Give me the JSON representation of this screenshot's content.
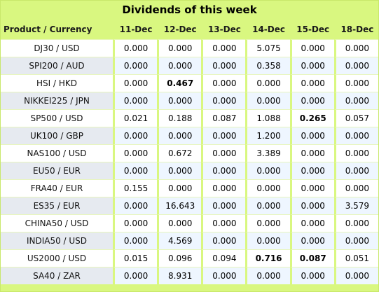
{
  "title": "Dividends of this week",
  "headers": [
    "Product / Currency",
    "11-Dec",
    "12-Dec",
    "13-Dec",
    "14-Dec",
    "15-Dec",
    "18-Dec"
  ],
  "rows": [
    {
      "product": "DJ30 / USD",
      "values": [
        "0.000",
        "0.000",
        "0.000",
        "5.075",
        "0.000",
        "0.000"
      ],
      "bold": []
    },
    {
      "product": "SPI200 / AUD",
      "values": [
        "0.000",
        "0.000",
        "0.000",
        "0.358",
        "0.000",
        "0.000"
      ],
      "bold": []
    },
    {
      "product": "HSI / HKD",
      "values": [
        "0.000",
        "0.467",
        "0.000",
        "0.000",
        "0.000",
        "0.000"
      ],
      "bold": [
        1
      ]
    },
    {
      "product": "NIKKEI225 / JPN",
      "values": [
        "0.000",
        "0.000",
        "0.000",
        "0.000",
        "0.000",
        "0.000"
      ],
      "bold": []
    },
    {
      "product": "SP500 / USD",
      "values": [
        "0.021",
        "0.188",
        "0.087",
        "1.088",
        "0.265",
        "0.057"
      ],
      "bold": [
        4
      ]
    },
    {
      "product": "UK100 / GBP",
      "values": [
        "0.000",
        "0.000",
        "0.000",
        "1.200",
        "0.000",
        "0.000"
      ],
      "bold": []
    },
    {
      "product": "NAS100 / USD",
      "values": [
        "0.000",
        "0.672",
        "0.000",
        "3.389",
        "0.000",
        "0.000"
      ],
      "bold": []
    },
    {
      "product": "EU50 / EUR",
      "values": [
        "0.000",
        "0.000",
        "0.000",
        "0.000",
        "0.000",
        "0.000"
      ],
      "bold": []
    },
    {
      "product": "FRA40 / EUR",
      "values": [
        "0.155",
        "0.000",
        "0.000",
        "0.000",
        "0.000",
        "0.000"
      ],
      "bold": []
    },
    {
      "product": "ES35 / EUR",
      "values": [
        "0.000",
        "16.643",
        "0.000",
        "0.000",
        "0.000",
        "3.579"
      ],
      "bold": []
    },
    {
      "product": "CHINA50 / USD",
      "values": [
        "0.000",
        "0.000",
        "0.000",
        "0.000",
        "0.000",
        "0.000"
      ],
      "bold": []
    },
    {
      "product": "INDIA50 / USD",
      "values": [
        "0.000",
        "4.569",
        "0.000",
        "0.000",
        "0.000",
        "0.000"
      ],
      "bold": []
    },
    {
      "product": "US2000 / USD",
      "values": [
        "0.015",
        "0.096",
        "0.094",
        "0.716",
        "0.087",
        "0.051"
      ],
      "bold": [
        3,
        4
      ]
    },
    {
      "product": "SA40 / ZAR",
      "values": [
        "0.000",
        "8.931",
        "0.000",
        "0.000",
        "0.000",
        "0.000"
      ],
      "bold": []
    }
  ],
  "colors": {
    "frame": "#d9f780",
    "row_alt": "#eef6ff",
    "product_alt": "#e6eaf0"
  }
}
